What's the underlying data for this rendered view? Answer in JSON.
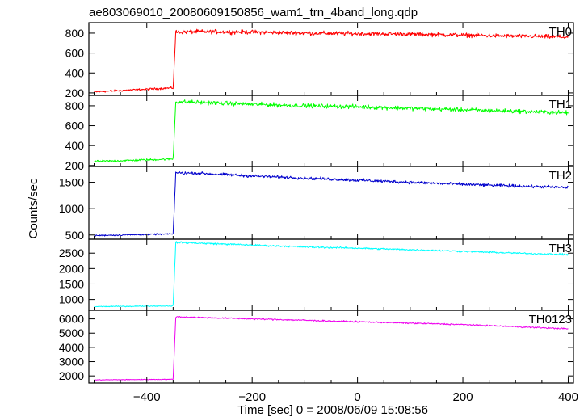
{
  "chart_data": {
    "type": "line",
    "title": "ae803069010_20080609150856_wam1_trn_4band_long.qdp",
    "xlabel": "Time [sec] 0 = 2008/06/09 15:08:56",
    "ylabel": "Counts/sec",
    "xlim": [
      -510,
      410
    ],
    "x_ticks": [
      -400,
      -200,
      0,
      200,
      400
    ],
    "x_tick_labels": [
      "−400",
      "−200",
      "0",
      "200",
      "400"
    ],
    "panels": [
      {
        "name": "TH0",
        "color": "#ff0000",
        "ylim": [
          175,
          905
        ],
        "y_ticks": [
          200,
          400,
          600,
          800
        ],
        "x": [
          -500,
          -350,
          -345,
          -300,
          -200,
          -100,
          0,
          100,
          200,
          300,
          400
        ],
        "values": [
          210,
          250,
          810,
          815,
          810,
          800,
          795,
          790,
          780,
          770,
          760
        ],
        "noise": 30
      },
      {
        "name": "TH1",
        "color": "#00ff00",
        "ylim": [
          190,
          905
        ],
        "y_ticks": [
          200,
          400,
          600,
          800
        ],
        "x": [
          -500,
          -350,
          -345,
          -300,
          -200,
          -100,
          0,
          100,
          200,
          300,
          400
        ],
        "values": [
          240,
          265,
          840,
          835,
          815,
          800,
          790,
          775,
          760,
          745,
          730
        ],
        "noise": 30
      },
      {
        "name": "TH2",
        "color": "#0000cc",
        "ylim": [
          420,
          1800
        ],
        "y_ticks": [
          500,
          1000,
          1500
        ],
        "x": [
          -500,
          -350,
          -345,
          -300,
          -200,
          -100,
          0,
          100,
          200,
          300,
          400
        ],
        "values": [
          490,
          520,
          1680,
          1670,
          1620,
          1580,
          1540,
          1500,
          1460,
          1430,
          1400
        ],
        "noise": 40
      },
      {
        "name": "TH3",
        "color": "#00ffff",
        "ylim": [
          650,
          2950
        ],
        "y_ticks": [
          1000,
          1500,
          2000,
          2500
        ],
        "x": [
          -500,
          -350,
          -345,
          -300,
          -200,
          -100,
          0,
          100,
          200,
          300,
          400
        ],
        "values": [
          770,
          790,
          2850,
          2820,
          2760,
          2700,
          2660,
          2610,
          2560,
          2500,
          2450
        ],
        "noise": 40
      },
      {
        "name": "TH0123",
        "color": "#ee00ee",
        "ylim": [
          1500,
          6600
        ],
        "y_ticks": [
          2000,
          3000,
          4000,
          5000,
          6000
        ],
        "x": [
          -500,
          -350,
          -345,
          -300,
          -200,
          -100,
          0,
          100,
          200,
          300,
          400
        ],
        "values": [
          1720,
          1760,
          6150,
          6100,
          6000,
          5900,
          5800,
          5700,
          5600,
          5450,
          5300
        ],
        "noise": 70
      }
    ]
  }
}
